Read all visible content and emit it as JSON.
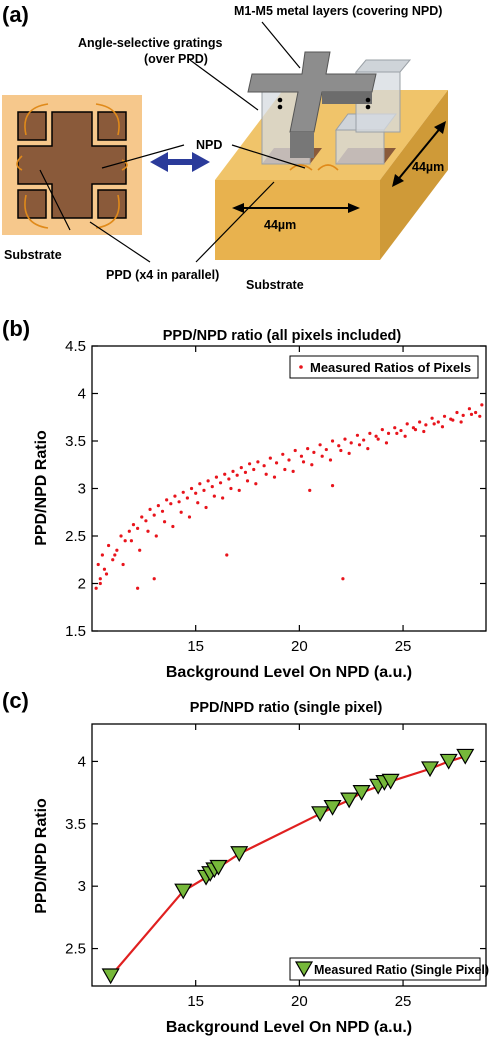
{
  "panel_a": {
    "letter": "(a)",
    "labels": {
      "metal_layers": "M1-M5 metal layers  (covering NPD)",
      "gratings_line1": "Angle-selective gratings",
      "gratings_line2": "(over PPD)",
      "npd": "NPD",
      "dim_vertical": "44µm",
      "dim_horizontal": "44µm",
      "substrate_left": "Substrate",
      "ppd": "PPD (x4 in parallel)",
      "substrate_bottom": "Substrate"
    },
    "colors": {
      "substrate_light": "#f6c88c",
      "detector_brown": "#8a5a3a",
      "substrate_gold": "#e8b24e",
      "arrow_blue": "#2b3b9a",
      "metal_gray": "#777777"
    }
  },
  "chart_data": [
    {
      "type": "scatter",
      "panel_letter": "(b)",
      "title": "PPD/NPD ratio (all pixels included)",
      "xlabel": "Background Level On NPD (a.u.)",
      "ylabel": "PPD/NPD Ratio",
      "xlim": [
        10,
        29
      ],
      "ylim": [
        1.5,
        4.5
      ],
      "xticks": [
        15,
        20,
        25
      ],
      "yticks": [
        1.5,
        2,
        2.5,
        3,
        3.5,
        4,
        4.5
      ],
      "ytick_labels": [
        "1.5",
        "2",
        "2.5",
        "3",
        "3.5",
        "4",
        "4.5"
      ],
      "legend": "top-right",
      "grid": false,
      "series": [
        {
          "name": "Measured Ratios of Pixels",
          "color": "#e8141c",
          "marker": "dot",
          "x": [
            10.2,
            10.3,
            10.4,
            10.5,
            10.6,
            10.8,
            11.0,
            11.2,
            11.4,
            11.6,
            11.8,
            12.0,
            12.2,
            12.4,
            12.6,
            12.8,
            13.0,
            13.2,
            13.4,
            13.6,
            13.8,
            14.0,
            14.2,
            14.4,
            14.6,
            14.8,
            15.0,
            15.2,
            15.4,
            15.6,
            15.8,
            16.0,
            16.2,
            16.4,
            16.6,
            16.8,
            17.0,
            17.2,
            17.4,
            17.6,
            17.8,
            18.0,
            18.3,
            18.6,
            18.9,
            19.2,
            19.5,
            19.8,
            20.1,
            20.4,
            20.7,
            21.0,
            21.3,
            21.6,
            21.9,
            22.2,
            22.5,
            22.8,
            23.1,
            23.4,
            23.7,
            24.0,
            24.3,
            24.6,
            24.9,
            25.2,
            25.5,
            25.8,
            26.1,
            26.4,
            26.7,
            27.0,
            27.3,
            27.6,
            27.9,
            28.2,
            28.5,
            28.8,
            10.4,
            10.7,
            11.1,
            11.5,
            11.9,
            12.3,
            12.7,
            13.1,
            13.5,
            13.9,
            14.3,
            14.7,
            15.1,
            15.5,
            15.9,
            16.3,
            16.7,
            17.1,
            17.5,
            17.9,
            18.4,
            18.8,
            19.3,
            19.7,
            20.2,
            20.6,
            21.1,
            21.5,
            22.0,
            22.4,
            22.9,
            23.3,
            23.8,
            24.2,
            24.7,
            25.1,
            25.6,
            26.0,
            26.5,
            26.9,
            27.4,
            27.8,
            28.3,
            28.7,
            16.5,
            20.5,
            21.6,
            22.1,
            12.2,
            13.0
          ],
          "y": [
            1.95,
            2.2,
            2.05,
            2.3,
            2.15,
            2.4,
            2.25,
            2.35,
            2.5,
            2.45,
            2.55,
            2.62,
            2.58,
            2.7,
            2.66,
            2.78,
            2.72,
            2.82,
            2.76,
            2.88,
            2.84,
            2.92,
            2.86,
            2.96,
            2.9,
            3.0,
            2.95,
            3.05,
            2.98,
            3.08,
            3.02,
            3.12,
            3.06,
            3.15,
            3.1,
            3.18,
            3.14,
            3.22,
            3.17,
            3.26,
            3.2,
            3.28,
            3.24,
            3.32,
            3.27,
            3.36,
            3.3,
            3.4,
            3.34,
            3.42,
            3.38,
            3.46,
            3.41,
            3.5,
            3.45,
            3.52,
            3.48,
            3.56,
            3.51,
            3.58,
            3.55,
            3.62,
            3.58,
            3.64,
            3.61,
            3.68,
            3.64,
            3.7,
            3.67,
            3.74,
            3.7,
            3.76,
            3.73,
            3.8,
            3.77,
            3.84,
            3.8,
            3.88,
            2.0,
            2.1,
            2.3,
            2.2,
            2.45,
            2.35,
            2.55,
            2.5,
            2.65,
            2.6,
            2.75,
            2.7,
            2.85,
            2.8,
            2.92,
            2.9,
            3.0,
            2.98,
            3.08,
            3.05,
            3.15,
            3.12,
            3.2,
            3.18,
            3.28,
            3.25,
            3.34,
            3.3,
            3.4,
            3.37,
            3.46,
            3.42,
            3.52,
            3.48,
            3.58,
            3.55,
            3.62,
            3.6,
            3.68,
            3.65,
            3.72,
            3.7,
            3.78,
            3.76,
            2.3,
            2.98,
            3.03,
            2.05,
            1.95,
            2.05
          ]
        }
      ]
    },
    {
      "type": "line",
      "panel_letter": "(c)",
      "title": "PPD/NPD ratio (single pixel)",
      "xlabel": "Background Level On NPD (a.u.)",
      "ylabel": "PPD/NPD Ratio",
      "xlim": [
        10,
        29
      ],
      "ylim": [
        2.2,
        4.3
      ],
      "xticks": [
        15,
        20,
        25
      ],
      "yticks": [
        2.5,
        3,
        3.5,
        4
      ],
      "ytick_labels": [
        "2.5",
        "3",
        "3.5",
        "4"
      ],
      "legend": "bottom-right",
      "grid": false,
      "fit_color": "#e02020",
      "marker_color": "#76b83a",
      "series": [
        {
          "name": "Measured Ratio (Single Pixel)",
          "marker": "triangle-down",
          "x": [
            10.9,
            14.4,
            15.5,
            15.7,
            15.9,
            16.1,
            17.1,
            21.0,
            21.6,
            22.4,
            23.0,
            23.8,
            24.1,
            24.4,
            26.3,
            27.2,
            28.0
          ],
          "y": [
            2.28,
            2.96,
            3.07,
            3.1,
            3.13,
            3.15,
            3.26,
            3.58,
            3.63,
            3.69,
            3.75,
            3.8,
            3.83,
            3.84,
            3.94,
            4.0,
            4.04
          ]
        }
      ]
    }
  ]
}
